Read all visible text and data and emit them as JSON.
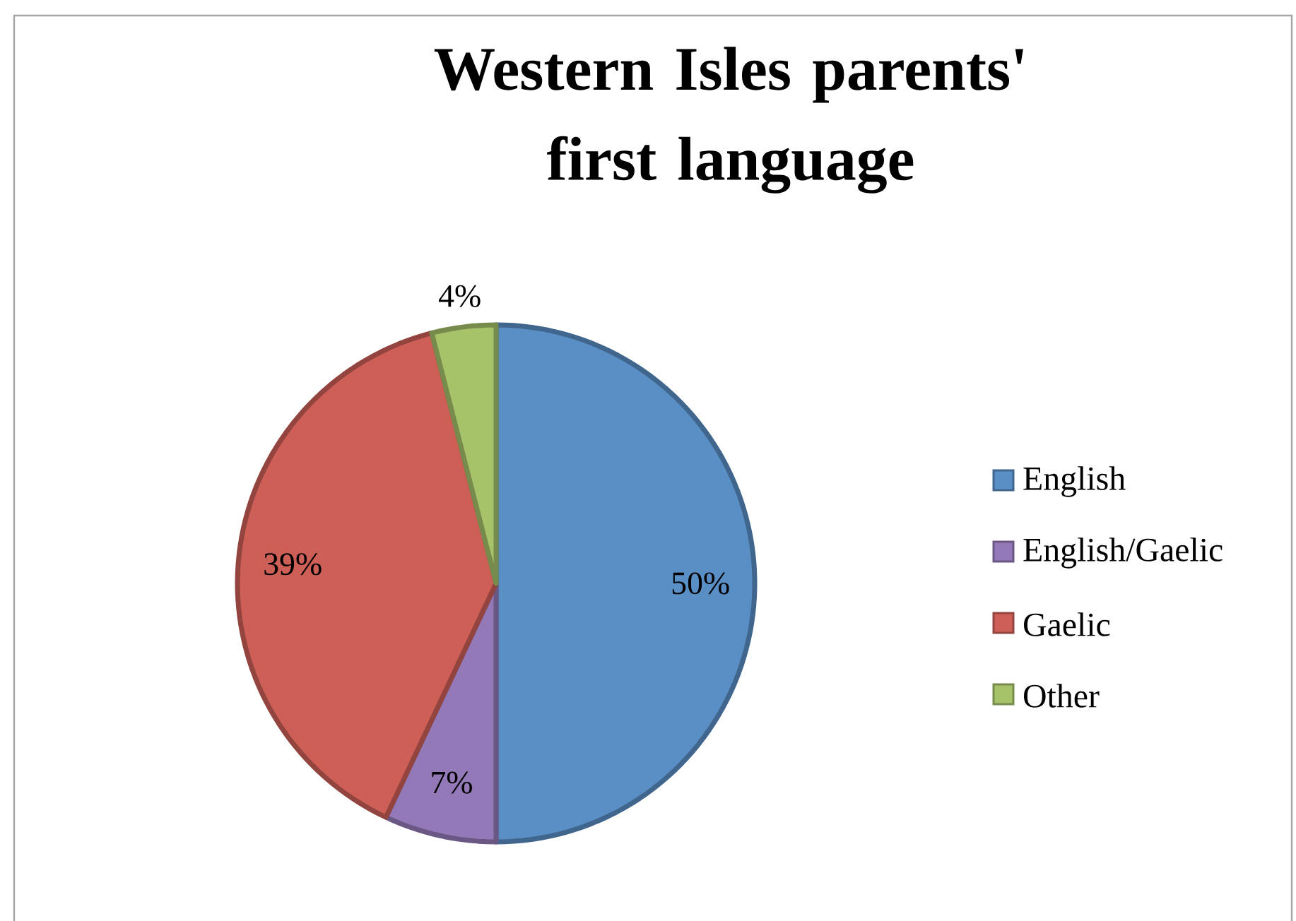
{
  "chart_data": {
    "type": "pie",
    "title": "Western Isles parents' first language",
    "categories": [
      "English",
      "English/Gaelic",
      "Gaelic",
      "Other"
    ],
    "values": [
      50,
      7,
      39,
      4
    ],
    "value_labels": [
      "50%",
      "7%",
      "39%",
      "4%"
    ],
    "colors": [
      "#5a8fc6",
      "#9479b8",
      "#cd5f57",
      "#a6c36a"
    ],
    "legend": "right"
  }
}
